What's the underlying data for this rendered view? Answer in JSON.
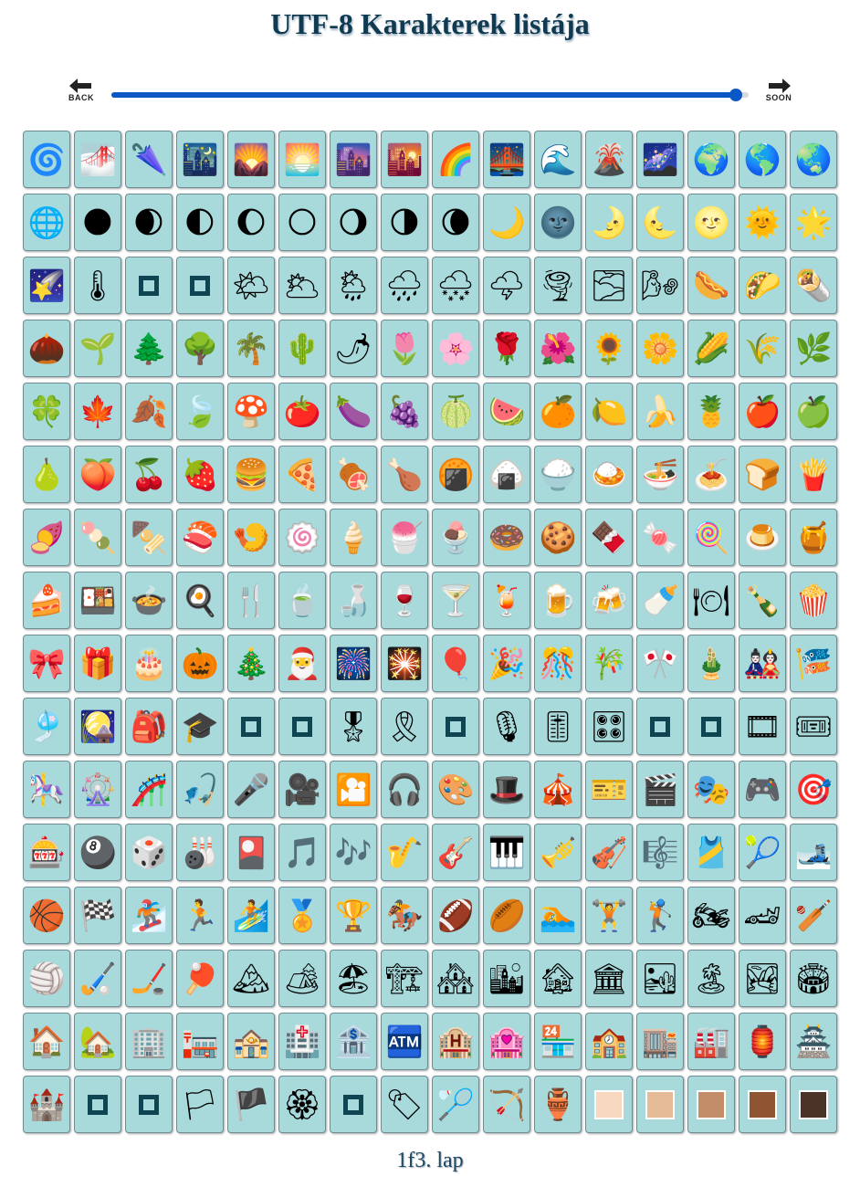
{
  "header": {
    "title": "UTF-8 Karakterek listája"
  },
  "nav": {
    "back_label": "BACK",
    "next_label": "SOON",
    "arrow_color": "#222222"
  },
  "slider": {
    "value": 0.98,
    "accent": "#0b57c6"
  },
  "colors": {
    "cell_bg": "#a8dadc",
    "placeholder": "#0f4452"
  },
  "chars": [
    "🌀",
    "🌁",
    "🌂",
    "🌃",
    "🌄",
    "🌅",
    "🌆",
    "🌇",
    "🌈",
    "🌉",
    "🌊",
    "🌋",
    "🌌",
    "🌍",
    "🌎",
    "🌏",
    "🌐",
    "🌑",
    "🌒",
    "🌓",
    "🌔",
    "🌕",
    "🌖",
    "🌗",
    "🌘",
    "🌙",
    "🌚",
    "🌛",
    "🌜",
    "🌝",
    "🌞",
    "🌟",
    "🌠",
    "🌡",
    "□",
    "□",
    "🌤",
    "🌥",
    "🌦",
    "🌧",
    "🌨",
    "🌩",
    "🌪",
    "🌫",
    "🌬",
    "🌭",
    "🌮",
    "🌯",
    "🌰",
    "🌱",
    "🌲",
    "🌳",
    "🌴",
    "🌵",
    "🌶",
    "🌷",
    "🌸",
    "🌹",
    "🌺",
    "🌻",
    "🌼",
    "🌽",
    "🌾",
    "🌿",
    "🍀",
    "🍁",
    "🍂",
    "🍃",
    "🍄",
    "🍅",
    "🍆",
    "🍇",
    "🍈",
    "🍉",
    "🍊",
    "🍋",
    "🍌",
    "🍍",
    "🍎",
    "🍏",
    "🍐",
    "🍑",
    "🍒",
    "🍓",
    "🍔",
    "🍕",
    "🍖",
    "🍗",
    "🍘",
    "🍙",
    "🍚",
    "🍛",
    "🍜",
    "🍝",
    "🍞",
    "🍟",
    "🍠",
    "🍡",
    "🍢",
    "🍣",
    "🍤",
    "🍥",
    "🍦",
    "🍧",
    "🍨",
    "🍩",
    "🍪",
    "🍫",
    "🍬",
    "🍭",
    "🍮",
    "🍯",
    "🍰",
    "🍱",
    "🍲",
    "🍳",
    "🍴",
    "🍵",
    "🍶",
    "🍷",
    "🍸",
    "🍹",
    "🍺",
    "🍻",
    "🍼",
    "🍽",
    "🍾",
    "🍿",
    "🎀",
    "🎁",
    "🎂",
    "🎃",
    "🎄",
    "🎅",
    "🎆",
    "🎇",
    "🎈",
    "🎉",
    "🎊",
    "🎋",
    "🎌",
    "🎍",
    "🎎",
    "🎏",
    "🎐",
    "🎑",
    "🎒",
    "🎓",
    "□",
    "□",
    "🎖",
    "🎗",
    "□",
    "🎙",
    "🎚",
    "🎛",
    "□",
    "□",
    "🎞",
    "🎟",
    "🎠",
    "🎡",
    "🎢",
    "🎣",
    "🎤",
    "🎥",
    "🎦",
    "🎧",
    "🎨",
    "🎩",
    "🎪",
    "🎫",
    "🎬",
    "🎭",
    "🎮",
    "🎯",
    "🎰",
    "🎱",
    "🎲",
    "🎳",
    "🎴",
    "🎵",
    "🎶",
    "🎷",
    "🎸",
    "🎹",
    "🎺",
    "🎻",
    "🎼",
    "🎽",
    "🎾",
    "🎿",
    "🏀",
    "🏁",
    "🏂",
    "🏃",
    "🏄",
    "🏅",
    "🏆",
    "🏇",
    "🏈",
    "🏉",
    "🏊",
    "🏋",
    "🏌",
    "🏍",
    "🏎",
    "🏏",
    "🏐",
    "🏑",
    "🏒",
    "🏓",
    "🏔",
    "🏕",
    "🏖",
    "🏗",
    "🏘",
    "🏙",
    "🏚",
    "🏛",
    "🏜",
    "🏝",
    "🏞",
    "🏟",
    "🏠",
    "🏡",
    "🏢",
    "🏣",
    "🏤",
    "🏥",
    "🏦",
    "🏧",
    "🏨",
    "🏩",
    "🏪",
    "🏫",
    "🏬",
    "🏭",
    "🏮",
    "🏯",
    "🏰",
    "□",
    "□",
    "🏳",
    "🏴",
    "🏵",
    "□",
    "🏷",
    "🏸",
    "🏹",
    "🏺",
    "🏻",
    "🏼",
    "🏽",
    "🏾",
    "🏿"
  ],
  "skin_tone_colors": {
    "🏻": "#f7d7bd",
    "🏼": "#e5bb97",
    "🏽": "#c28d68",
    "🏾": "#8f5532",
    "🏿": "#4a3327"
  },
  "footer": {
    "page_label": "1f3. lap"
  }
}
